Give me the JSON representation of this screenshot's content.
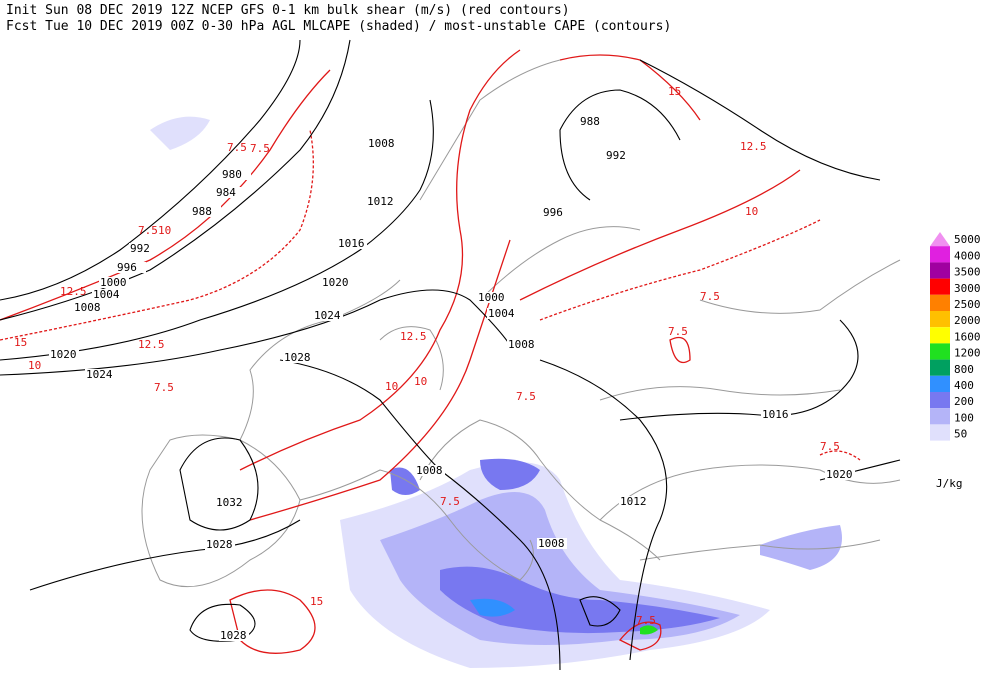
{
  "header": {
    "line1": "Init  Sun 08 DEC 2019 12Z  NCEP GFS 0-1 km bulk shear (m/s) (red contours)",
    "line2": "Fcst Tue 10 DEC 2019 00Z  0-30 hPa AGL MLCAPE (shaded) / most-unstable CAPE (contours)"
  },
  "colorbar": {
    "unit": "J/kg",
    "levels": [
      {
        "value": 5000,
        "color": "#f090f0"
      },
      {
        "value": 4000,
        "color": "#e020e0"
      },
      {
        "value": 3500,
        "color": "#a000a0"
      },
      {
        "value": 3000,
        "color": "#ff0000"
      },
      {
        "value": 2500,
        "color": "#ff8000"
      },
      {
        "value": 2000,
        "color": "#ffc000"
      },
      {
        "value": 1600,
        "color": "#ffff00"
      },
      {
        "value": 1200,
        "color": "#20e020"
      },
      {
        "value": 800,
        "color": "#00a060"
      },
      {
        "value": 400,
        "color": "#3090ff"
      },
      {
        "value": 200,
        "color": "#7878f0"
      },
      {
        "value": 100,
        "color": "#b4b4f8"
      },
      {
        "value": 50,
        "color": "#e0e0fc"
      }
    ]
  },
  "isobar_labels": [
    980,
    984,
    988,
    992,
    996,
    1000,
    1004,
    1008,
    1008,
    1012,
    1016,
    1020,
    1024,
    1028,
    1020,
    1024,
    1032,
    1028,
    1028,
    988,
    992,
    996,
    1000,
    1004,
    1008,
    1016,
    1020,
    1008,
    1012,
    1008
  ],
  "shear_labels": [
    7.5,
    7.5,
    10,
    7.5,
    15,
    12.5,
    7.5,
    10,
    12.5,
    10,
    15,
    12.5,
    10,
    7.5,
    7.5,
    12.5,
    10,
    7.5,
    15,
    7.5,
    7.5,
    7.5
  ]
}
